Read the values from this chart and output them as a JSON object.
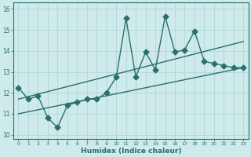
{
  "title": "",
  "xlabel": "Humidex (Indice chaleur)",
  "ylabel": "",
  "xlim": [
    -0.5,
    23.5
  ],
  "ylim": [
    9.8,
    16.3
  ],
  "yticks": [
    10,
    11,
    12,
    13,
    14,
    15,
    16
  ],
  "xticks": [
    0,
    1,
    2,
    3,
    4,
    5,
    6,
    7,
    8,
    9,
    10,
    11,
    12,
    13,
    14,
    15,
    16,
    17,
    18,
    19,
    20,
    21,
    22,
    23
  ],
  "background_color": "#ceeaea",
  "grid_color": "#aad4d4",
  "line_color": "#2a6e6e",
  "data_x": [
    0,
    1,
    2,
    3,
    4,
    5,
    6,
    7,
    8,
    9,
    10,
    11,
    12,
    13,
    14,
    15,
    16,
    17,
    18,
    19,
    20,
    21,
    22,
    23
  ],
  "data_y": [
    12.25,
    11.7,
    11.85,
    10.8,
    10.35,
    11.4,
    11.55,
    11.7,
    11.7,
    12.0,
    12.75,
    15.55,
    12.75,
    13.95,
    13.1,
    15.65,
    13.95,
    14.05,
    14.95,
    13.5,
    13.4,
    13.3,
    13.2,
    13.2
  ],
  "trend1_x": [
    0,
    23
  ],
  "trend1_y": [
    11.7,
    14.45
  ],
  "trend2_x": [
    0,
    23
  ],
  "trend2_y": [
    11.0,
    13.2
  ],
  "marker_size": 3.5,
  "line_width": 1.0
}
